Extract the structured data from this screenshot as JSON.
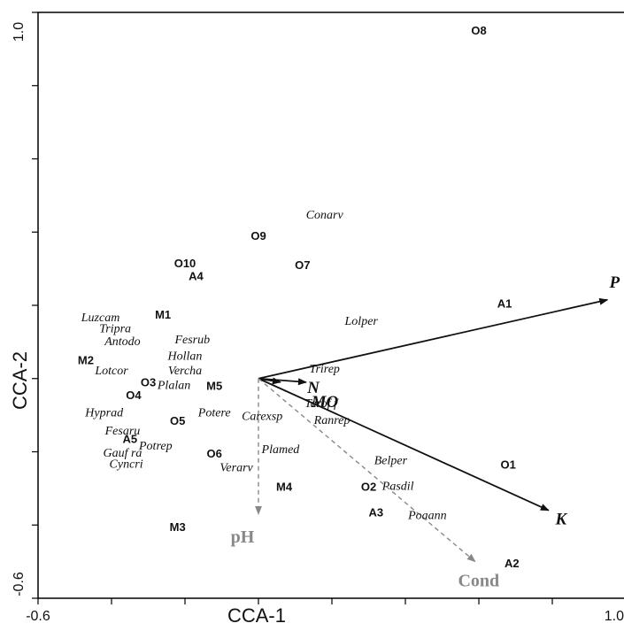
{
  "chart_data": {
    "type": "scatter",
    "xlabel": "CCA-1",
    "ylabel": "CCA-2",
    "xlim": [
      -0.6,
      1.0
    ],
    "ylim": [
      -0.6,
      1.0
    ],
    "x_tick_labels": [
      {
        "value": -0.6,
        "label": "-0.6"
      },
      {
        "value": 1.0,
        "label": "1.0"
      }
    ],
    "y_tick_labels": [
      {
        "value": 1.0,
        "label": "1.0"
      },
      {
        "value": -0.6,
        "label": "-0.6"
      }
    ],
    "minor_ticks": [
      -0.4,
      -0.2,
      0.0,
      0.2,
      0.4,
      0.6,
      0.8
    ],
    "origin": [
      -0.6,
      0.0
    ],
    "sites": [
      {
        "label": "O8",
        "x": 0.6,
        "y": 0.95
      },
      {
        "label": "O9",
        "x": 0.0,
        "y": 0.39
      },
      {
        "label": "O10",
        "x": -0.2,
        "y": 0.315
      },
      {
        "label": "A4",
        "x": -0.17,
        "y": 0.28
      },
      {
        "label": "O7",
        "x": 0.12,
        "y": 0.31
      },
      {
        "label": "A1",
        "x": 0.67,
        "y": 0.205
      },
      {
        "label": "M1",
        "x": -0.26,
        "y": 0.175
      },
      {
        "label": "M2",
        "x": -0.47,
        "y": 0.05
      },
      {
        "label": "O3",
        "x": -0.3,
        "y": -0.01
      },
      {
        "label": "O4",
        "x": -0.34,
        "y": -0.045
      },
      {
        "label": "M5",
        "x": -0.12,
        "y": -0.02
      },
      {
        "label": "O5",
        "x": -0.22,
        "y": -0.115
      },
      {
        "label": "A5",
        "x": -0.35,
        "y": -0.165
      },
      {
        "label": "O6",
        "x": -0.12,
        "y": -0.205
      },
      {
        "label": "O1",
        "x": 0.68,
        "y": -0.235
      },
      {
        "label": "M4",
        "x": 0.07,
        "y": -0.295
      },
      {
        "label": "O2",
        "x": 0.3,
        "y": -0.295
      },
      {
        "label": "A3",
        "x": 0.32,
        "y": -0.365
      },
      {
        "label": "M3",
        "x": -0.22,
        "y": -0.405
      },
      {
        "label": "A2",
        "x": 0.69,
        "y": -0.505
      }
    ],
    "species": [
      {
        "label": "Conarv",
        "x": 0.18,
        "y": 0.445
      },
      {
        "label": "Luzcam",
        "x": -0.43,
        "y": 0.165
      },
      {
        "label": "Tripra",
        "x": -0.39,
        "y": 0.135
      },
      {
        "label": "Lolper",
        "x": 0.28,
        "y": 0.155
      },
      {
        "label": "Antodo",
        "x": -0.37,
        "y": 0.1
      },
      {
        "label": "Fesrub",
        "x": -0.18,
        "y": 0.105
      },
      {
        "label": "Hollan",
        "x": -0.2,
        "y": 0.06
      },
      {
        "label": "Lotcor",
        "x": -0.4,
        "y": 0.02
      },
      {
        "label": "Vercha",
        "x": -0.2,
        "y": 0.02
      },
      {
        "label": "Trirep",
        "x": 0.18,
        "y": 0.025
      },
      {
        "label": "Plalan",
        "x": -0.23,
        "y": -0.02
      },
      {
        "label": "Tarof f",
        "x": 0.17,
        "y": -0.07
      },
      {
        "label": "Hyprad",
        "x": -0.42,
        "y": -0.095
      },
      {
        "label": "Potere",
        "x": -0.12,
        "y": -0.095
      },
      {
        "label": "Carexsp",
        "x": 0.01,
        "y": -0.105
      },
      {
        "label": "Ranrep",
        "x": 0.2,
        "y": -0.115
      },
      {
        "label": "Fesaru",
        "x": -0.37,
        "y": -0.145
      },
      {
        "label": "Potrep",
        "x": -0.28,
        "y": -0.185
      },
      {
        "label": "Plamed",
        "x": 0.06,
        "y": -0.195
      },
      {
        "label": "Gauf ra",
        "x": -0.37,
        "y": -0.205
      },
      {
        "label": "Cyncri",
        "x": -0.36,
        "y": -0.235
      },
      {
        "label": "Belper",
        "x": 0.36,
        "y": -0.225
      },
      {
        "label": "Verarv",
        "x": -0.06,
        "y": -0.245
      },
      {
        "label": "Pasdil",
        "x": 0.38,
        "y": -0.295
      },
      {
        "label": "Poaann",
        "x": 0.46,
        "y": -0.375
      }
    ],
    "vectors": [
      {
        "label": "P",
        "x": 0.95,
        "y": 0.215,
        "color": "#111111",
        "dashed": false
      },
      {
        "label": "K",
        "x": 0.79,
        "y": -0.36,
        "color": "#111111",
        "dashed": false
      },
      {
        "label": "N",
        "x": 0.13,
        "y": -0.01,
        "color": "#111111",
        "dashed": false
      },
      {
        "label": "MO",
        "x": 0.06,
        "y": -0.01,
        "color": "#111111",
        "dashed": false
      },
      {
        "label": "pH",
        "x": 0.0,
        "y": -0.37,
        "color": "#888888",
        "dashed": true
      },
      {
        "label": "Cond",
        "x": 0.59,
        "y": -0.5,
        "color": "#888888",
        "dashed": true
      }
    ],
    "grid": false
  },
  "colors": {
    "arrow_black": "#111111",
    "arrow_gray": "#888888",
    "axis": "#000000"
  }
}
